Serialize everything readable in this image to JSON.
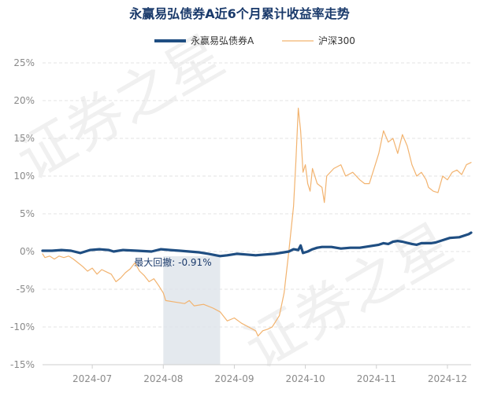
{
  "chart_data": {
    "type": "line",
    "title": "永赢易弘债券A近6个月累计收益率走势",
    "watermark": "证券之星",
    "ylim": [
      -15,
      25
    ],
    "y_ticks": [
      -15,
      -10,
      -5,
      0,
      5,
      10,
      15,
      20,
      25
    ],
    "y_tick_labels": [
      "-15%",
      "-10%",
      "-5%",
      "0%",
      "5%",
      "10%",
      "15%",
      "20%",
      "25%"
    ],
    "x_ticks": [
      "2024-07",
      "2024-08",
      "2024-09",
      "2024-10",
      "2024-11",
      "2024-12"
    ],
    "x_tick_positions": [
      21,
      51,
      81,
      111,
      141,
      171
    ],
    "x_range": [
      0,
      181
    ],
    "grid": true,
    "legend_position": "top-center",
    "drawdown": {
      "label": "最大回撤: -0.91%",
      "x_start": 51,
      "x_end": 75
    },
    "series": [
      {
        "name": "永赢易弘债券A",
        "color": "#1f4e82",
        "points": [
          [
            0,
            0.1
          ],
          [
            4,
            0.1
          ],
          [
            8,
            0.2
          ],
          [
            12,
            0.1
          ],
          [
            16,
            -0.2
          ],
          [
            20,
            0.2
          ],
          [
            24,
            0.3
          ],
          [
            28,
            0.2
          ],
          [
            30,
            0.0
          ],
          [
            34,
            0.2
          ],
          [
            40,
            0.1
          ],
          [
            46,
            0.0
          ],
          [
            50,
            0.3
          ],
          [
            54,
            0.2
          ],
          [
            58,
            0.1
          ],
          [
            62,
            0.0
          ],
          [
            66,
            -0.1
          ],
          [
            70,
            -0.3
          ],
          [
            75,
            -0.6
          ],
          [
            78,
            -0.5
          ],
          [
            82,
            -0.3
          ],
          [
            86,
            -0.4
          ],
          [
            90,
            -0.5
          ],
          [
            94,
            -0.4
          ],
          [
            98,
            -0.3
          ],
          [
            102,
            -0.1
          ],
          [
            104,
            0.0
          ],
          [
            106,
            0.3
          ],
          [
            108,
            0.2
          ],
          [
            109,
            0.8
          ],
          [
            110,
            -0.2
          ],
          [
            112,
            0.0
          ],
          [
            114,
            0.3
          ],
          [
            116,
            0.5
          ],
          [
            118,
            0.6
          ],
          [
            122,
            0.6
          ],
          [
            126,
            0.4
          ],
          [
            130,
            0.5
          ],
          [
            134,
            0.5
          ],
          [
            138,
            0.7
          ],
          [
            142,
            0.9
          ],
          [
            144,
            1.1
          ],
          [
            146,
            1.0
          ],
          [
            148,
            1.3
          ],
          [
            150,
            1.4
          ],
          [
            152,
            1.3
          ],
          [
            156,
            1.0
          ],
          [
            158,
            0.9
          ],
          [
            160,
            1.1
          ],
          [
            164,
            1.1
          ],
          [
            166,
            1.2
          ],
          [
            170,
            1.6
          ],
          [
            172,
            1.8
          ],
          [
            176,
            1.9
          ],
          [
            180,
            2.3
          ],
          [
            181,
            2.5
          ]
        ]
      },
      {
        "name": "沪深300",
        "color": "#f2b36f",
        "points": [
          [
            0,
            -0.3
          ],
          [
            1,
            -0.8
          ],
          [
            3,
            -0.6
          ],
          [
            5,
            -1.0
          ],
          [
            7,
            -0.6
          ],
          [
            9,
            -0.8
          ],
          [
            11,
            -0.6
          ],
          [
            13,
            -1.0
          ],
          [
            15,
            -1.5
          ],
          [
            17,
            -2.0
          ],
          [
            19,
            -2.6
          ],
          [
            21,
            -2.2
          ],
          [
            23,
            -3.0
          ],
          [
            25,
            -2.4
          ],
          [
            27,
            -2.7
          ],
          [
            29,
            -3.0
          ],
          [
            31,
            -4.0
          ],
          [
            33,
            -3.5
          ],
          [
            35,
            -2.8
          ],
          [
            37,
            -2.3
          ],
          [
            39,
            -1.5
          ],
          [
            41,
            -2.6
          ],
          [
            43,
            -3.2
          ],
          [
            45,
            -4.0
          ],
          [
            47,
            -3.6
          ],
          [
            49,
            -4.5
          ],
          [
            51,
            -5.5
          ],
          [
            52,
            -6.5
          ],
          [
            56,
            -6.7
          ],
          [
            60,
            -6.9
          ],
          [
            62,
            -6.5
          ],
          [
            64,
            -7.2
          ],
          [
            68,
            -7.0
          ],
          [
            72,
            -7.5
          ],
          [
            75,
            -8.0
          ],
          [
            78,
            -9.2
          ],
          [
            81,
            -8.8
          ],
          [
            84,
            -9.5
          ],
          [
            87,
            -10.0
          ],
          [
            90,
            -10.5
          ],
          [
            91,
            -11.2
          ],
          [
            93,
            -10.5
          ],
          [
            95,
            -10.3
          ],
          [
            97,
            -10.0
          ],
          [
            100,
            -8.5
          ],
          [
            102,
            -5.5
          ],
          [
            104,
            0.0
          ],
          [
            106,
            6.0
          ],
          [
            107,
            12.0
          ],
          [
            108,
            19.0
          ],
          [
            109,
            16.0
          ],
          [
            110,
            10.5
          ],
          [
            111,
            11.5
          ],
          [
            112,
            9.0
          ],
          [
            113,
            8.0
          ],
          [
            114,
            11.0
          ],
          [
            116,
            9.0
          ],
          [
            118,
            8.5
          ],
          [
            119,
            6.5
          ],
          [
            120,
            10.0
          ],
          [
            123,
            11.0
          ],
          [
            126,
            11.5
          ],
          [
            128,
            10.0
          ],
          [
            131,
            10.5
          ],
          [
            134,
            9.5
          ],
          [
            136,
            9.0
          ],
          [
            138,
            9.0
          ],
          [
            140,
            11.0
          ],
          [
            142,
            13.0
          ],
          [
            144,
            16.0
          ],
          [
            146,
            14.5
          ],
          [
            148,
            15.0
          ],
          [
            150,
            13.0
          ],
          [
            152,
            15.5
          ],
          [
            154,
            14.0
          ],
          [
            156,
            11.5
          ],
          [
            158,
            10.0
          ],
          [
            160,
            10.5
          ],
          [
            162,
            9.5
          ],
          [
            163,
            8.5
          ],
          [
            165,
            8.0
          ],
          [
            167,
            7.8
          ],
          [
            169,
            10.0
          ],
          [
            171,
            9.5
          ],
          [
            173,
            10.5
          ],
          [
            175,
            10.8
          ],
          [
            177,
            10.2
          ],
          [
            179,
            11.5
          ],
          [
            181,
            11.8
          ]
        ]
      }
    ]
  }
}
